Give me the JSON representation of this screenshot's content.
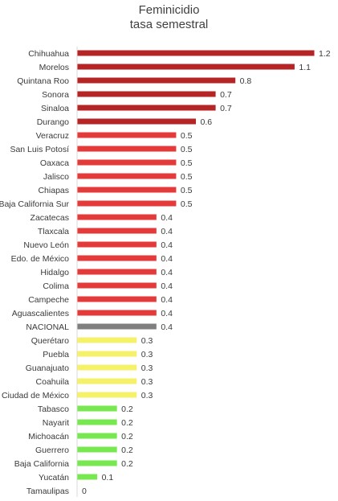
{
  "chart_data": {
    "type": "bar",
    "orientation": "horizontal",
    "title": [
      "Feminicidio",
      "tasa semestral"
    ],
    "xlabel": "",
    "ylabel": "",
    "xlim": [
      0,
      1.2
    ],
    "grid": false,
    "legend": "none",
    "categories": [
      "Chihuahua",
      "Morelos",
      "Quintana Roo",
      "Sonora",
      "Sinaloa",
      "Durango",
      "Veracruz",
      "San Luis Potosí",
      "Oaxaca",
      "Jalisco",
      "Chiapas",
      "Baja California Sur",
      "Zacatecas",
      "Tlaxcala",
      "Nuevo León",
      "Edo. de México",
      "Hidalgo",
      "Colima",
      "Campeche",
      "Aguascalientes",
      "NACIONAL",
      "Querétaro",
      "Puebla",
      "Guanajuato",
      "Coahuila",
      "Ciudad de México",
      "Tabasco",
      "Nayarit",
      "Michoacán",
      "Guerrero",
      "Baja California",
      "Yucatán",
      "Tamaulipas"
    ],
    "values": [
      1.2,
      1.1,
      0.8,
      0.7,
      0.7,
      0.6,
      0.5,
      0.5,
      0.5,
      0.5,
      0.5,
      0.5,
      0.4,
      0.4,
      0.4,
      0.4,
      0.4,
      0.4,
      0.4,
      0.4,
      0.4,
      0.3,
      0.3,
      0.3,
      0.3,
      0.3,
      0.2,
      0.2,
      0.2,
      0.2,
      0.2,
      0.1,
      0
    ],
    "value_labels": [
      "1.2",
      "1.1",
      "0.8",
      "0.7",
      "0.7",
      "0.6",
      "0.5",
      "0.5",
      "0.5",
      "0.5",
      "0.5",
      "0.5",
      "0.4",
      "0.4",
      "0.4",
      "0.4",
      "0.4",
      "0.4",
      "0.4",
      "0.4",
      "0.4",
      "0.3",
      "0.3",
      "0.3",
      "0.3",
      "0.3",
      "0.2",
      "0.2",
      "0.2",
      "0.2",
      "0.2",
      "0.1",
      "0"
    ],
    "colors": [
      "#b52525",
      "#b52525",
      "#b52525",
      "#b52525",
      "#b52525",
      "#b52525",
      "#e53a3a",
      "#e53a3a",
      "#e53a3a",
      "#e53a3a",
      "#e53a3a",
      "#e53a3a",
      "#e53a3a",
      "#e53a3a",
      "#e53a3a",
      "#e53a3a",
      "#e53a3a",
      "#e53a3a",
      "#e53a3a",
      "#e53a3a",
      "#7f7f7f",
      "#f5f26a",
      "#f5f26a",
      "#f5f26a",
      "#f5f26a",
      "#f5f26a",
      "#77e84f",
      "#77e84f",
      "#77e84f",
      "#77e84f",
      "#77e84f",
      "#77e84f",
      "#77e84f"
    ],
    "axis_color": "#d9d9d9"
  }
}
